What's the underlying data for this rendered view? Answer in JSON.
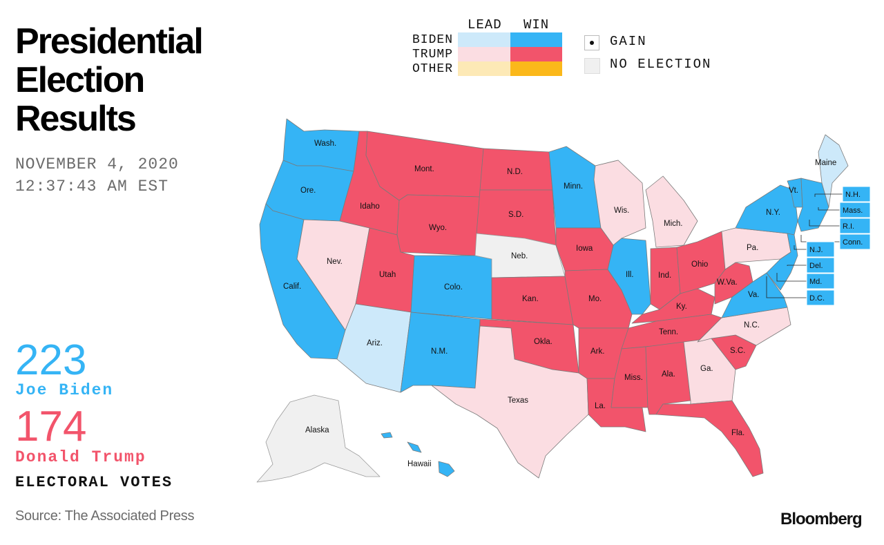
{
  "title": [
    "Presidential",
    "Election",
    "Results"
  ],
  "date": {
    "line1": "NOVEMBER 4, 2020",
    "line2": "12:37:43 AM EST"
  },
  "candidates": {
    "biden": {
      "votes": "223",
      "name": "Joe Biden"
    },
    "trump": {
      "votes": "174",
      "name": "Donald Trump"
    }
  },
  "electoral_label": "ELECTORAL VOTES",
  "source": "Source: The Associated Press",
  "brand": "Bloomberg",
  "legend": {
    "lead_header": "LEAD",
    "win_header": "WIN",
    "rows": [
      "BIDEN",
      "TRUMP",
      "OTHER"
    ],
    "gain": "GAIN",
    "no_election": "NO ELECTION"
  },
  "colors": {
    "biden_win": "#35b4f5",
    "biden_lead": "#cde9fa",
    "trump_win": "#f2546b",
    "trump_lead": "#fbdde2",
    "other_win": "#fbb81a",
    "other_lead": "#fde9b6",
    "no_election": "#f0f0f0"
  },
  "states": {
    "Wash.": "biden_win",
    "Ore.": "biden_win",
    "Calif.": "biden_win",
    "Nev.": "trump_lead",
    "Idaho": "trump_win",
    "Mont.": "trump_win",
    "Wyo.": "trump_win",
    "Utah": "trump_win",
    "Colo.": "biden_win",
    "Ariz.": "biden_lead",
    "N.M.": "biden_win",
    "N.D.": "trump_win",
    "S.D.": "trump_win",
    "Neb.": "no_election",
    "Kan.": "trump_win",
    "Okla.": "trump_win",
    "Texas": "trump_lead",
    "Minn.": "biden_win",
    "Iowa": "trump_win",
    "Mo.": "trump_win",
    "Ark.": "trump_win",
    "La.": "trump_win",
    "Wis.": "trump_lead",
    "Ill.": "biden_win",
    "Mich.": "trump_lead",
    "Ind.": "trump_win",
    "Ohio": "trump_win",
    "Ky.": "trump_win",
    "Tenn.": "trump_win",
    "Miss.": "trump_win",
    "Ala.": "trump_win",
    "Ga.": "trump_lead",
    "Fla.": "trump_win",
    "S.C.": "trump_win",
    "N.C.": "trump_lead",
    "Va.": "biden_win",
    "W.Va.": "trump_win",
    "Pa.": "trump_lead",
    "N.Y.": "biden_win",
    "Vt.": "biden_win",
    "Maine": "biden_lead",
    "Alaska": "no_election",
    "Hawaii": "biden_win"
  },
  "callouts": [
    "N.H.",
    "Mass.",
    "R.I.",
    "Conn.",
    "N.J.",
    "Del.",
    "Md.",
    "D.C."
  ]
}
